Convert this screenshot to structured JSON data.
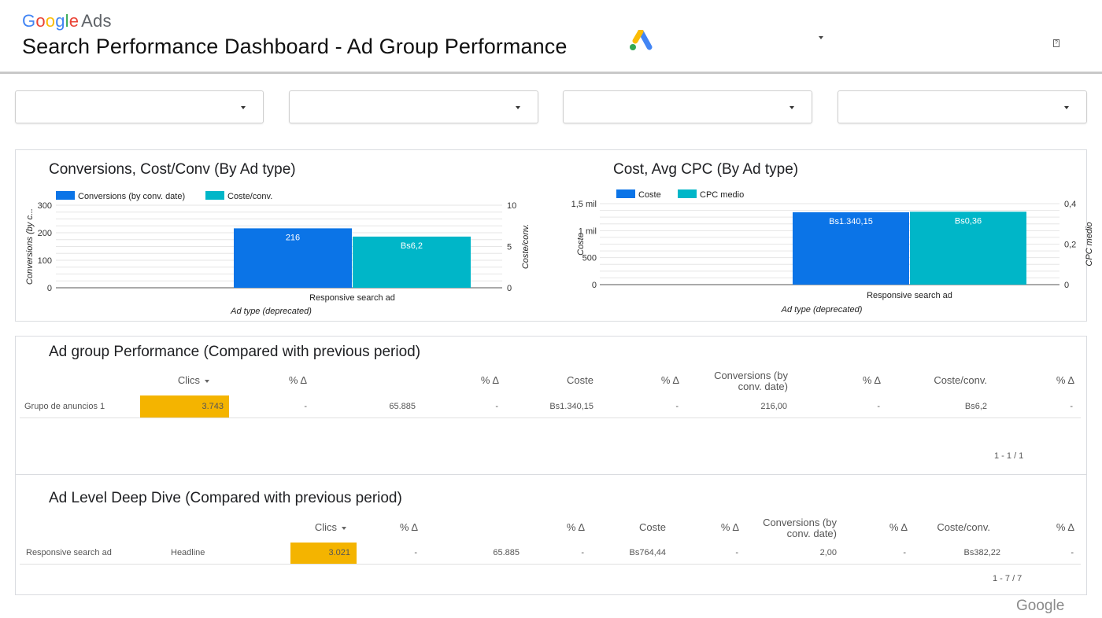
{
  "header": {
    "logo_google": [
      "G",
      "o",
      "o",
      "g",
      "l",
      "e"
    ],
    "logo_ads": "Ads",
    "title": "Search Performance Dashboard - Ad Group Performance",
    "help_icon": "?"
  },
  "filters": [
    {
      "value": ""
    },
    {
      "value": ""
    },
    {
      "value": ""
    },
    {
      "value": ""
    }
  ],
  "charts": {
    "conversions": {
      "title": "Conversions, Cost/Conv  (By Ad type)",
      "legend": [
        "Conversions (by conv. date)",
        "Coste/conv."
      ],
      "xlabel": "Ad type (deprecated)",
      "ylabel_left": "Conversions (by c...",
      "ylabel_right": "Coste/conv."
    },
    "cost": {
      "title": "Cost,  Avg CPC (By Ad type)",
      "legend": [
        "Coste",
        "CPC medio"
      ],
      "xlabel": "Ad type (deprecated)",
      "ylabel_left": "Coste",
      "ylabel_right": "CPC medio"
    }
  },
  "chart_data": [
    {
      "type": "bar",
      "title": "Conversions, Cost/Conv  (By Ad type)",
      "categories": [
        "Responsive search ad"
      ],
      "series": [
        {
          "name": "Conversions (by conv. date)",
          "values": [
            216
          ],
          "label": [
            "216"
          ],
          "axis": "left",
          "color": "#0b74e7"
        },
        {
          "name": "Coste/conv.",
          "values": [
            6.2
          ],
          "label": [
            "Bs6,2"
          ],
          "axis": "right",
          "color": "#00b6c8"
        }
      ],
      "xlabel": "Ad type (deprecated)",
      "ylabel": "Conversions (by c...",
      "y2label": "Coste/conv.",
      "ylim": [
        0,
        300
      ],
      "y2lim": [
        0,
        10
      ],
      "yticks": [
        "0",
        "100",
        "200",
        "300"
      ],
      "y2ticks": [
        "0",
        "5",
        "10"
      ],
      "legend": "top-left",
      "grid": true
    },
    {
      "type": "bar",
      "title": "Cost,  Avg CPC (By Ad type)",
      "categories": [
        "Responsive search ad"
      ],
      "series": [
        {
          "name": "Coste",
          "values": [
            1340.15
          ],
          "label": [
            "Bs1.340,15"
          ],
          "axis": "left",
          "color": "#0b74e7"
        },
        {
          "name": "CPC medio",
          "values": [
            0.36
          ],
          "label": [
            "Bs0,36"
          ],
          "axis": "right",
          "color": "#00b6c8"
        }
      ],
      "xlabel": "Ad type (deprecated)",
      "ylabel": "Coste",
      "y2label": "CPC medio",
      "ylim": [
        0,
        1500
      ],
      "y2lim": [
        0,
        0.4
      ],
      "yticks": [
        "0",
        "500",
        "1 mil",
        "1,5 mil"
      ],
      "y2ticks": [
        "0",
        "0,2",
        "0,4"
      ],
      "legend": "top-left",
      "grid": true
    }
  ],
  "ad_group_table": {
    "title": "Ad group Performance (Compared with previous period)",
    "headers": [
      "Clics",
      "% Δ",
      "% Δ",
      "Coste",
      "% Δ",
      "Conversions (by",
      "conv. date)",
      "% Δ",
      "Coste/conv.",
      "% Δ"
    ],
    "row": {
      "name": "Grupo de anuncios 1",
      "clics": "3.743",
      "clics_delta": "-",
      "impr": "65.885",
      "impr_delta": "-",
      "coste": "Bs1.340,15",
      "coste_delta": "-",
      "conv": "216,00",
      "conv_delta": "-",
      "cpa": "Bs6,2",
      "cpa_delta": "-"
    },
    "pager": "1 - 1 / 1"
  },
  "ad_level_table": {
    "title": "Ad Level Deep Dive (Compared with previous period)",
    "headers": [
      "Clics",
      "% Δ",
      "% Δ",
      "Coste",
      "% Δ",
      "Conversions (by",
      "conv. date)",
      "% Δ",
      "Coste/conv.",
      "% Δ"
    ],
    "row": {
      "ad_type": "Responsive search ad",
      "headline": "Headline",
      "clics": "3.021",
      "clics_delta": "-",
      "impr": "65.885",
      "impr_delta": "-",
      "coste": "Bs764,44",
      "coste_delta": "-",
      "conv": "2,00",
      "conv_delta": "-",
      "cpa": "Bs382,22",
      "cpa_delta": "-"
    },
    "pager": "1 - 7 / 7"
  },
  "footer": {
    "logo": "Google"
  },
  "colors": {
    "blue": "#0b74e7",
    "teal": "#00b6c8",
    "highlight": "#f4b400"
  }
}
